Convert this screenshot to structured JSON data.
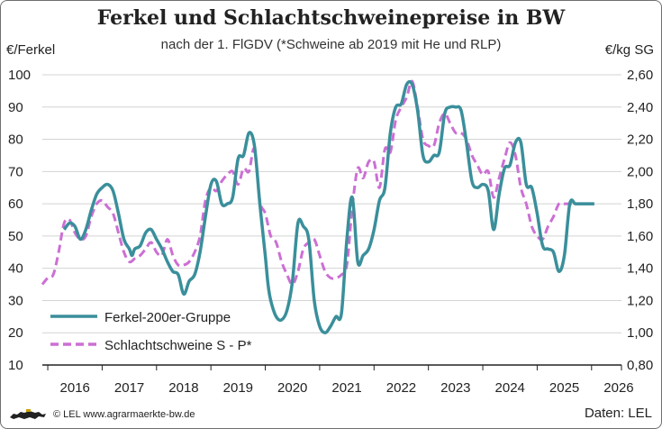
{
  "header": {
    "title": "Ferkel und Schlachtschweinepreise in BW",
    "subtitle": "nach der 1. FlGDV (*Schweine ab 2019 mit He und RLP)"
  },
  "footer": {
    "copyright": "© LEL www.agrarmaerkte-bw.de",
    "source": "Daten: LEL",
    "logo_icon": "lion-logo-icon"
  },
  "colors": {
    "ferkel": "#3a8f9b",
    "schwein": "#cc6fd4",
    "grid": "#d3d3d3",
    "axis": "#222222"
  },
  "chart_data": {
    "type": "line",
    "title": "Ferkel und Schlachtschweinepreise in BW",
    "subtitle": "nach der 1. FlGDV (*Schweine ab 2019 mit He und RLP)",
    "ylabel_left": "€/Ferkel",
    "ylabel_right": "€/kg SG",
    "ylim_left": [
      10,
      100
    ],
    "yticks_left": [
      "10",
      "20",
      "30",
      "40",
      "50",
      "60",
      "70",
      "80",
      "90",
      "100"
    ],
    "ylim_right": [
      0.8,
      2.6
    ],
    "yticks_right": [
      "0,80",
      "1,00",
      "1,20",
      "1,40",
      "1,60",
      "1,80",
      "2,00",
      "2,20",
      "2,40",
      "2,60"
    ],
    "xlim": [
      2015.9,
      2026.55
    ],
    "xticks": [
      "2016",
      "2017",
      "2018",
      "2019",
      "2020",
      "2021",
      "2022",
      "2023",
      "2024",
      "2025",
      "2026"
    ],
    "grid": "horizontal",
    "legend_position": "bottom-left",
    "series": [
      {
        "name": "Ferkel-200er-Gruppe",
        "axis": "left",
        "style": "solid",
        "x": [
          2016.3,
          2016.4,
          2016.5,
          2016.6,
          2016.7,
          2016.8,
          2016.9,
          2017.0,
          2017.1,
          2017.2,
          2017.3,
          2017.4,
          2017.5,
          2017.55,
          2017.6,
          2017.7,
          2017.8,
          2017.9,
          2018.0,
          2018.1,
          2018.2,
          2018.3,
          2018.4,
          2018.5,
          2018.6,
          2018.7,
          2018.8,
          2018.9,
          2019.0,
          2019.1,
          2019.2,
          2019.3,
          2019.4,
          2019.5,
          2019.6,
          2019.7,
          2019.8,
          2019.9,
          2020.0,
          2020.05,
          2020.1,
          2020.2,
          2020.3,
          2020.4,
          2020.5,
          2020.6,
          2020.7,
          2020.8,
          2020.9,
          2021.0,
          2021.1,
          2021.2,
          2021.3,
          2021.4,
          2021.5,
          2021.6,
          2021.7,
          2021.8,
          2021.9,
          2022.0,
          2022.1,
          2022.2,
          2022.3,
          2022.4,
          2022.5,
          2022.6,
          2022.7,
          2022.8,
          2022.9,
          2023.0,
          2023.1,
          2023.2,
          2023.3,
          2023.4,
          2023.5,
          2023.6,
          2023.7,
          2023.8,
          2023.9,
          2024.0,
          2024.1,
          2024.2,
          2024.3,
          2024.4,
          2024.5,
          2024.6,
          2024.7,
          2024.8,
          2024.9,
          2025.0,
          2025.1,
          2025.2,
          2025.3,
          2025.4,
          2025.5,
          2025.6,
          2025.7,
          2025.8,
          2025.9,
          2026.0,
          2026.05
        ],
        "values": [
          52,
          54,
          53,
          49,
          52,
          58,
          63,
          65,
          66,
          64,
          57,
          49,
          46,
          44,
          46,
          47,
          51,
          52,
          49,
          46,
          42,
          39,
          38,
          32,
          36,
          38,
          45,
          56,
          66,
          67,
          60,
          60,
          62,
          74,
          75,
          82,
          78,
          60,
          44,
          35,
          30,
          25,
          24,
          27,
          36,
          54,
          53,
          49,
          30,
          22,
          20,
          22,
          25,
          26,
          49,
          62,
          42,
          44,
          46,
          52,
          61,
          65,
          82,
          90,
          91,
          97,
          97,
          89,
          75,
          73,
          75,
          76,
          88,
          90,
          90,
          89,
          79,
          67,
          65,
          66,
          64,
          52,
          63,
          71,
          72,
          79,
          79,
          66,
          65,
          57,
          47,
          46,
          45,
          39,
          44,
          60,
          60,
          60,
          60,
          60,
          60
        ]
      },
      {
        "name": "Schlachtschweine S - P*",
        "axis": "right",
        "style": "dashed",
        "x": [
          2015.9,
          2016.0,
          2016.1,
          2016.2,
          2016.3,
          2016.4,
          2016.5,
          2016.6,
          2016.7,
          2016.8,
          2016.9,
          2017.0,
          2017.1,
          2017.2,
          2017.3,
          2017.4,
          2017.5,
          2017.6,
          2017.7,
          2017.8,
          2017.9,
          2018.0,
          2018.1,
          2018.2,
          2018.3,
          2018.4,
          2018.5,
          2018.6,
          2018.7,
          2018.8,
          2018.9,
          2019.0,
          2019.1,
          2019.2,
          2019.3,
          2019.4,
          2019.5,
          2019.6,
          2019.7,
          2019.8,
          2019.9,
          2020.0,
          2020.1,
          2020.2,
          2020.3,
          2020.4,
          2020.5,
          2020.6,
          2020.7,
          2020.8,
          2020.9,
          2021.0,
          2021.1,
          2021.2,
          2021.3,
          2021.4,
          2021.5,
          2021.6,
          2021.7,
          2021.8,
          2021.9,
          2022.0,
          2022.1,
          2022.2,
          2022.3,
          2022.4,
          2022.5,
          2022.6,
          2022.7,
          2022.8,
          2022.9,
          2023.0,
          2023.1,
          2023.2,
          2023.3,
          2023.4,
          2023.5,
          2023.6,
          2023.7,
          2023.8,
          2023.9,
          2024.0,
          2024.1,
          2024.2,
          2024.3,
          2024.4,
          2024.5,
          2024.6,
          2024.7,
          2024.8,
          2024.9,
          2025.0,
          2025.1,
          2025.2,
          2025.3,
          2025.4,
          2025.5,
          2025.6,
          2025.7,
          2025.8,
          2025.9,
          2026.0,
          2026.05
        ],
        "values": [
          1.3,
          1.34,
          1.36,
          1.5,
          1.68,
          1.7,
          1.62,
          1.58,
          1.6,
          1.72,
          1.8,
          1.82,
          1.78,
          1.74,
          1.62,
          1.5,
          1.44,
          1.46,
          1.48,
          1.52,
          1.56,
          1.5,
          1.48,
          1.58,
          1.48,
          1.42,
          1.42,
          1.44,
          1.5,
          1.6,
          1.82,
          1.9,
          1.88,
          1.94,
          1.98,
          2.0,
          1.92,
          2.02,
          2.0,
          2.14,
          1.82,
          1.74,
          1.6,
          1.56,
          1.44,
          1.36,
          1.3,
          1.38,
          1.52,
          1.56,
          1.58,
          1.48,
          1.38,
          1.34,
          1.34,
          1.36,
          1.42,
          1.78,
          2.02,
          1.96,
          2.06,
          2.06,
          1.9,
          2.14,
          2.12,
          2.32,
          2.4,
          2.46,
          2.56,
          2.4,
          2.2,
          2.16,
          2.16,
          2.3,
          2.36,
          2.3,
          2.24,
          2.24,
          2.2,
          2.1,
          2.04,
          1.98,
          2.0,
          1.84,
          1.96,
          2.08,
          2.18,
          2.1,
          1.9,
          1.8,
          1.66,
          1.6,
          1.58,
          1.66,
          1.72,
          1.8,
          1.8,
          1.8,
          1.8,
          1.8,
          1.8,
          1.8,
          1.8
        ]
      }
    ]
  }
}
